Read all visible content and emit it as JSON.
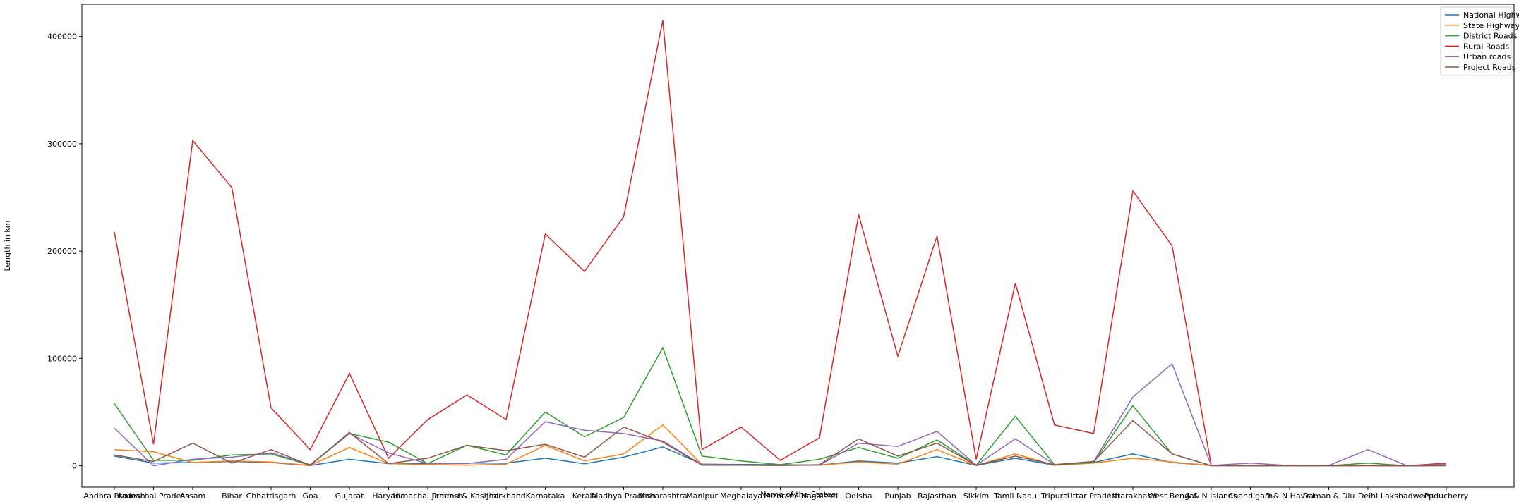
{
  "chart_data": {
    "type": "line",
    "xlabel": "Name of the States",
    "ylabel": "Length in km",
    "ylim": [
      -20000,
      430000
    ],
    "yticks": [
      0,
      100000,
      200000,
      300000,
      400000
    ],
    "ytick_labels": [
      "0",
      "100000",
      "200000",
      "300000",
      "400000"
    ],
    "grid": false,
    "legend_position": "top-right",
    "categories": [
      "Andhra Pradesh",
      "Arunachal Pradesh",
      "Assam",
      "Bihar",
      "Chhattisgarh",
      "Goa",
      "Gujarat",
      "Haryana",
      "Himachal Pradesh",
      "Jammu & Kashmir",
      "Jharkhand",
      "Karnataka",
      "Kerala",
      "Madhya Pradesh",
      "Maharashtra",
      "Manipur",
      "Meghalaya",
      "Mizoram",
      "Nagaland",
      "Odisha",
      "Punjab",
      "Rajasthan",
      "Sikkim",
      "Tamil Nadu",
      "Tripura",
      "Uttar Pradesh",
      "Uttarakhand",
      "West Bengal",
      "A & N Islands",
      "Chandigarh",
      "D & N Haveli",
      "Daman & Diu",
      "Delhi",
      "Lakshadweep",
      "Puducherry"
    ],
    "series": [
      {
        "name": "National Highways",
        "color": "#1f77b4",
        "values": [
          9000,
          2500,
          3000,
          4000,
          3000,
          200,
          6000,
          2000,
          2000,
          2500,
          2500,
          7000,
          1800,
          8000,
          17500,
          1500,
          1200,
          1000,
          500,
          4500,
          2500,
          8500,
          300,
          7000,
          500,
          3000,
          11000,
          3000,
          300,
          20,
          30,
          20,
          100,
          0,
          60
        ]
      },
      {
        "name": "State Highways",
        "color": "#ff7f0e",
        "values": [
          15000,
          13000,
          3000,
          4500,
          3500,
          300,
          17000,
          2000,
          1000,
          500,
          1500,
          19000,
          4500,
          11000,
          38000,
          1000,
          500,
          300,
          500,
          3500,
          1500,
          15000,
          200,
          11000,
          400,
          2500,
          7000,
          3500,
          100,
          50,
          30,
          20,
          100,
          0,
          100
        ]
      },
      {
        "name": "District Roads",
        "color": "#2ca02c",
        "values": [
          58000,
          5000,
          5000,
          10000,
          11000,
          500,
          30000,
          22000,
          2000,
          19000,
          10000,
          50000,
          27000,
          45000,
          110000,
          9000,
          4500,
          1000,
          6000,
          17000,
          7000,
          24000,
          500,
          46000,
          1000,
          3000,
          56000,
          11000,
          200,
          50,
          100,
          50,
          2500,
          0,
          500
        ]
      },
      {
        "name": "Rural Roads",
        "color": "#d62728",
        "values": [
          218000,
          20000,
          303000,
          259000,
          54000,
          15000,
          86000,
          7000,
          43000,
          66000,
          43000,
          216000,
          181000,
          232000,
          415000,
          15000,
          36000,
          5000,
          26000,
          234000,
          102000,
          214000,
          6000,
          170000,
          38000,
          30000,
          256000,
          205000,
          300,
          100,
          500,
          100,
          200,
          0,
          2500
        ]
      },
      {
        "name": "Urban roads",
        "color": "#9467bd",
        "values": [
          35000,
          0,
          6000,
          8000,
          12000,
          1000,
          30000,
          12000,
          2000,
          2000,
          6000,
          41000,
          33000,
          30000,
          23000,
          1000,
          500,
          500,
          500,
          21000,
          18000,
          32000,
          500,
          25000,
          1000,
          4000,
          64000,
          95000,
          300,
          2500,
          200,
          300,
          15000,
          0,
          1500
        ]
      },
      {
        "name": "Project Roads",
        "color": "#8c564b",
        "values": [
          10000,
          4000,
          21000,
          2500,
          15000,
          500,
          31000,
          2000,
          7000,
          19000,
          14000,
          20000,
          8000,
          36000,
          22000,
          500,
          500,
          300,
          1000,
          25000,
          9000,
          21000,
          500,
          9000,
          1000,
          4000,
          42000,
          11000,
          50,
          20,
          50,
          10,
          100,
          0,
          200
        ]
      }
    ]
  }
}
